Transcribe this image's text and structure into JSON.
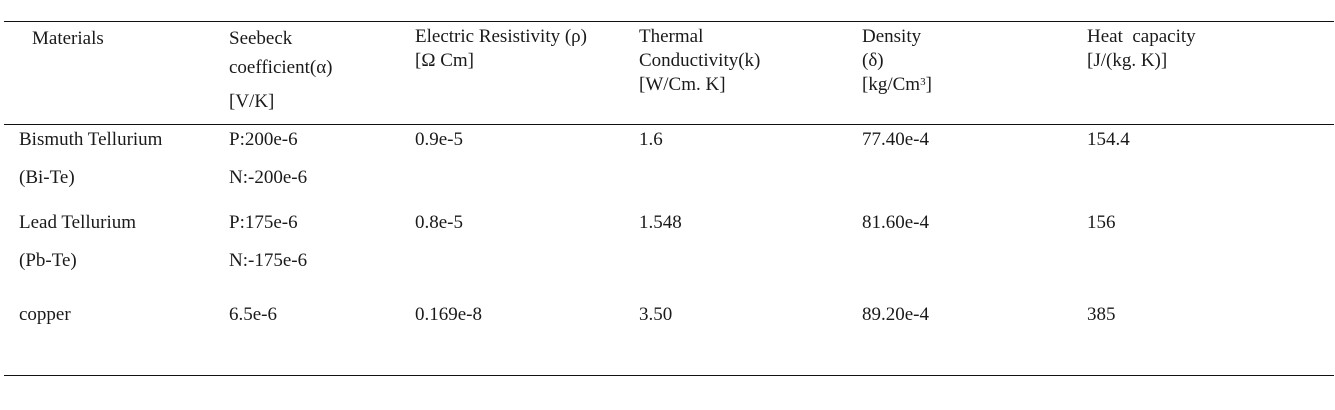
{
  "headers": {
    "materials": "Materials",
    "seebeck": [
      "Seebeck",
      "coefficient(α)",
      "[V/K]"
    ],
    "resistivity": [
      "Electric Resistivity (ρ)",
      "[Ω Cm]"
    ],
    "conductivity": [
      "Thermal",
      "Conductivity(k)",
      "[W/Cm. K]"
    ],
    "density": [
      "Density",
      "(δ)",
      "[kg/Cm",
      "3",
      "]"
    ],
    "heat_capacity": [
      "Heat  capacity",
      "[J/(kg. K)]"
    ]
  },
  "rows": [
    {
      "material": [
        "Bismuth Tellurium",
        "(Bi-Te)"
      ],
      "seebeck": [
        "P:200e-6",
        "N:-200e-6"
      ],
      "resistivity": "0.9e-5",
      "conductivity": "1.6",
      "density": "77.40e-4",
      "heat_capacity": "154.4"
    },
    {
      "material": [
        "Lead Tellurium",
        "(Pb-Te)"
      ],
      "seebeck": [
        "P:175e-6",
        "N:-175e-6"
      ],
      "resistivity": "0.8e-5",
      "conductivity": "1.548",
      "density": "81.60e-4",
      "heat_capacity": "156"
    },
    {
      "material": [
        "copper"
      ],
      "seebeck": [
        "6.5e-6"
      ],
      "resistivity": "0.169e-8",
      "conductivity": "3.50",
      "density": "89.20e-4",
      "heat_capacity": "385"
    }
  ]
}
